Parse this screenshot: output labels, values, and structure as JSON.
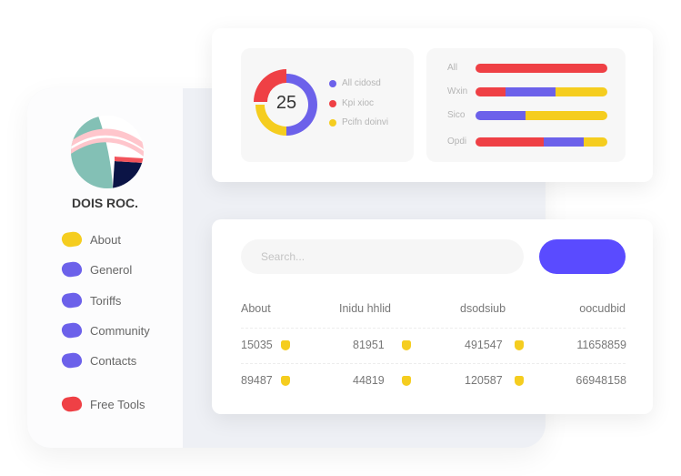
{
  "sidebar": {
    "brand": "DOIS ROC.",
    "items": [
      {
        "label": "About",
        "color": "#f5cd1f"
      },
      {
        "label": "Generol",
        "color": "#6c61ea"
      },
      {
        "label": "Toriffs",
        "color": "#6c61ea"
      },
      {
        "label": "Community",
        "color": "#6c61ea"
      },
      {
        "label": "Contacts",
        "color": "#6c61ea"
      },
      {
        "label": "Free Tools",
        "color": "#ef4045"
      }
    ]
  },
  "donut": {
    "center_value": "25",
    "legend": [
      {
        "label": "All cidosd",
        "color": "#6c61ea"
      },
      {
        "label": "Kpi xioc",
        "color": "#ef4045"
      },
      {
        "label": "Pcifn doinvi",
        "color": "#f5cd1f"
      }
    ]
  },
  "bars": [
    {
      "label": "All",
      "segments": [
        {
          "color": "#ef4045",
          "fraction": 1.0
        }
      ]
    },
    {
      "label": "Wxin",
      "segments": [
        {
          "color": "#ef4045",
          "fraction": 0.23
        },
        {
          "color": "#6c61ea",
          "fraction": 0.38
        },
        {
          "color": "#f5cd1f",
          "fraction": 0.39
        }
      ]
    },
    {
      "label": "Sico",
      "segments": [
        {
          "color": "#6c61ea",
          "fraction": 0.38
        },
        {
          "color": "#f5cd1f",
          "fraction": 0.62
        }
      ]
    },
    {
      "label": "Opdi",
      "segments": [
        {
          "color": "#ef4045",
          "fraction": 0.52
        },
        {
          "color": "#6c61ea",
          "fraction": 0.3
        },
        {
          "color": "#f5cd1f",
          "fraction": 0.18
        }
      ]
    }
  ],
  "search": {
    "placeholder": "Search..."
  },
  "table": {
    "headers": [
      "About",
      "Inidu hhlid",
      "dsodsiub",
      "oocudbid"
    ],
    "rows": [
      [
        "15035",
        "81951",
        "491547",
        "11658859"
      ],
      [
        "89487",
        "44819",
        "120587",
        "66948158"
      ]
    ]
  }
}
